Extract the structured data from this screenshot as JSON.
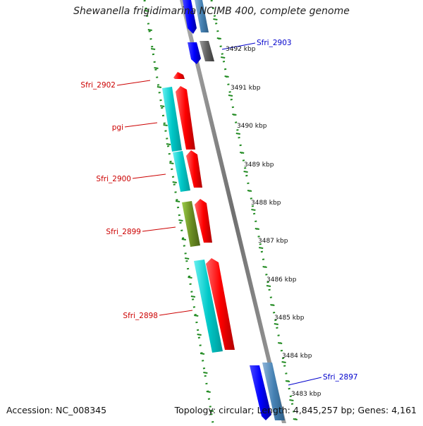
{
  "title": "Shewanella frigidimarina NCIMB 400, complete genome",
  "footer": {
    "accession": "Accession: NC_008345",
    "summary": "Topology: circular; Length: 4,845,257 bp; Genes: 4,161"
  },
  "colors": {
    "forward_cds": "#ff0000",
    "reverse_cds": "#0000ff",
    "cog_cyan": "#00c8c8",
    "cog_olive": "#6b8e23",
    "cog_steelblue": "#4682b4",
    "cog_gray": "#606060",
    "backbone": "#808080",
    "ruler": "#228b22",
    "label_forward": "#cc0000",
    "label_reverse": "#0000cc"
  },
  "ruler_ticks": [
    "3492 kbp",
    "3491 kbp",
    "3490 kbp",
    "3489 kbp",
    "3488 kbp",
    "3487 kbp",
    "3486 kbp",
    "3485 kbp",
    "3484 kbp",
    "3483 kbp"
  ],
  "gene_labels": [
    {
      "text": "Sfri_2903",
      "strand": "reverse"
    },
    {
      "text": "Sfri_2902",
      "strand": "forward"
    },
    {
      "text": "pgi",
      "strand": "forward"
    },
    {
      "text": "Sfri_2900",
      "strand": "forward"
    },
    {
      "text": "Sfri_2899",
      "strand": "forward"
    },
    {
      "text": "Sfri_2898",
      "strand": "forward"
    },
    {
      "text": "Sfri_2897",
      "strand": "reverse"
    }
  ]
}
